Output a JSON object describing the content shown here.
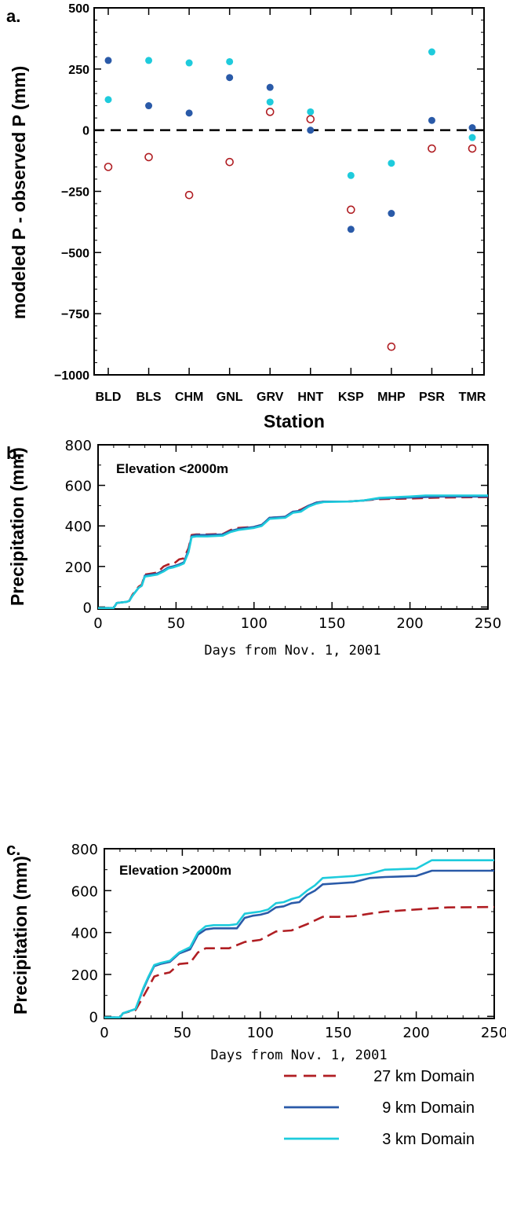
{
  "colors": {
    "d27": "#b01e23",
    "d9": "#2a5aa8",
    "d3": "#1ecbdc"
  },
  "chart_data": [
    {
      "type": "scatter",
      "panel_label": "a.",
      "xlabel": "Station",
      "ylabel": "modeled P - observed P (mm)",
      "ylim": [
        -1000,
        500
      ],
      "yticks": [
        500,
        250,
        0,
        -250,
        -500,
        -750,
        -1000
      ],
      "ytick_labels": [
        "500",
        "250",
        "0",
        "−250",
        "−500",
        "−750",
        "−1000"
      ],
      "categories": [
        "BLD",
        "BLS",
        "CHM",
        "GNL",
        "GRV",
        "HNT",
        "KSP",
        "MHP",
        "PSR",
        "TMR"
      ],
      "zero_line": "dashed",
      "series": [
        {
          "color_key": "d27",
          "marker": "open-circle",
          "values": [
            -150,
            -110,
            -265,
            -130,
            75,
            45,
            -325,
            -885,
            -75,
            -75
          ]
        },
        {
          "color_key": "d9",
          "marker": "filled-dot",
          "values": [
            285,
            100,
            70,
            215,
            175,
            0,
            -405,
            -340,
            40,
            10
          ]
        },
        {
          "color_key": "d3",
          "marker": "filled-dot",
          "values": [
            125,
            285,
            275,
            280,
            115,
            75,
            -185,
            -135,
            320,
            -30
          ]
        }
      ]
    },
    {
      "type": "line",
      "panel_label": "b.",
      "title": "Elevation <2000m",
      "xlabel": "Days from Nov. 1, 2001",
      "ylabel": "Precipitation (mm)",
      "xlim": [
        0,
        250
      ],
      "ylim": [
        -10,
        800
      ],
      "xticks": [
        0,
        50,
        100,
        150,
        200,
        250
      ],
      "yticks": [
        0,
        200,
        400,
        600,
        800
      ],
      "series": [
        {
          "color_key": "d27",
          "style": "dashed",
          "x": [
            0,
            10,
            12,
            18,
            20,
            22,
            26,
            28,
            30,
            34,
            38,
            42,
            45,
            48,
            52,
            55,
            58,
            60,
            63,
            70,
            80,
            85,
            90,
            100,
            105,
            110,
            120,
            125,
            130,
            135,
            140,
            145,
            160,
            170,
            180,
            200,
            220,
            250
          ],
          "y": [
            -5,
            -5,
            20,
            25,
            30,
            60,
            100,
            110,
            160,
            165,
            170,
            200,
            210,
            210,
            235,
            240,
            290,
            355,
            358,
            358,
            360,
            380,
            390,
            395,
            405,
            440,
            445,
            470,
            480,
            500,
            515,
            520,
            520,
            525,
            532,
            535,
            540,
            542
          ]
        },
        {
          "color_key": "d9",
          "style": "solid",
          "x": [
            0,
            10,
            12,
            18,
            20,
            22,
            26,
            28,
            30,
            34,
            38,
            42,
            45,
            48,
            52,
            55,
            58,
            60,
            63,
            70,
            80,
            85,
            90,
            100,
            105,
            110,
            120,
            125,
            130,
            135,
            140,
            145,
            160,
            170,
            180,
            200,
            220,
            250
          ],
          "y": [
            -5,
            -5,
            20,
            25,
            30,
            55,
            95,
            105,
            155,
            160,
            165,
            180,
            195,
            200,
            210,
            220,
            280,
            350,
            355,
            355,
            358,
            375,
            385,
            395,
            405,
            440,
            445,
            470,
            475,
            500,
            515,
            520,
            520,
            525,
            535,
            540,
            545,
            545
          ]
        },
        {
          "color_key": "d3",
          "style": "solid",
          "x": [
            0,
            10,
            12,
            18,
            20,
            22,
            26,
            28,
            30,
            34,
            38,
            42,
            45,
            48,
            52,
            55,
            58,
            60,
            63,
            70,
            80,
            85,
            90,
            100,
            105,
            110,
            120,
            125,
            130,
            135,
            140,
            145,
            160,
            170,
            180,
            200,
            210,
            250
          ],
          "y": [
            -5,
            -5,
            20,
            25,
            30,
            55,
            95,
            105,
            150,
            155,
            160,
            175,
            190,
            195,
            205,
            215,
            270,
            345,
            348,
            348,
            352,
            370,
            380,
            390,
            400,
            435,
            440,
            465,
            470,
            495,
            510,
            518,
            520,
            525,
            538,
            545,
            550,
            550
          ]
        }
      ]
    },
    {
      "type": "line",
      "panel_label": "c.",
      "title": "Elevation >2000m",
      "xlabel": "Days from Nov. 1, 2001",
      "ylabel": "Precipitation (mm)",
      "xlim": [
        0,
        250
      ],
      "ylim": [
        -10,
        800
      ],
      "xticks": [
        0,
        50,
        100,
        150,
        200,
        250
      ],
      "yticks": [
        0,
        200,
        400,
        600,
        800
      ],
      "legend": [
        "27 km Domain",
        "9 km Domain",
        "3 km Domain"
      ],
      "legend_position": "bottom-right",
      "series": [
        {
          "name": "27 km Domain",
          "color_key": "d27",
          "style": "dashed",
          "x": [
            0,
            10,
            12,
            20,
            25,
            28,
            32,
            36,
            42,
            48,
            55,
            60,
            65,
            70,
            80,
            90,
            100,
            110,
            120,
            130,
            140,
            150,
            160,
            170,
            180,
            200,
            220,
            250
          ],
          "y": [
            -5,
            -5,
            15,
            30,
            95,
            135,
            190,
            200,
            210,
            250,
            255,
            305,
            325,
            325,
            325,
            355,
            365,
            405,
            410,
            440,
            475,
            475,
            478,
            490,
            500,
            510,
            520,
            522
          ]
        },
        {
          "name": "9 km Domain",
          "color_key": "d9",
          "style": "solid",
          "x": [
            0,
            10,
            12,
            20,
            25,
            28,
            32,
            36,
            42,
            48,
            55,
            60,
            65,
            70,
            80,
            85,
            90,
            95,
            100,
            105,
            110,
            115,
            120,
            125,
            130,
            135,
            140,
            150,
            160,
            170,
            180,
            200,
            210,
            250
          ],
          "y": [
            -5,
            -5,
            15,
            35,
            130,
            180,
            240,
            250,
            260,
            300,
            320,
            390,
            415,
            420,
            420,
            420,
            470,
            480,
            485,
            495,
            520,
            525,
            540,
            545,
            580,
            600,
            630,
            635,
            640,
            660,
            665,
            670,
            695,
            695
          ]
        },
        {
          "name": "3 km Domain",
          "color_key": "d3",
          "style": "solid",
          "x": [
            0,
            10,
            12,
            20,
            25,
            28,
            32,
            36,
            42,
            48,
            55,
            60,
            65,
            70,
            80,
            85,
            90,
            95,
            100,
            105,
            110,
            115,
            120,
            125,
            130,
            135,
            140,
            150,
            160,
            170,
            180,
            200,
            210,
            250
          ],
          "y": [
            -5,
            -5,
            15,
            35,
            135,
            185,
            245,
            255,
            265,
            305,
            330,
            400,
            430,
            435,
            435,
            440,
            490,
            495,
            500,
            510,
            540,
            545,
            560,
            570,
            600,
            625,
            660,
            665,
            670,
            680,
            700,
            705,
            745,
            745
          ]
        }
      ]
    }
  ]
}
